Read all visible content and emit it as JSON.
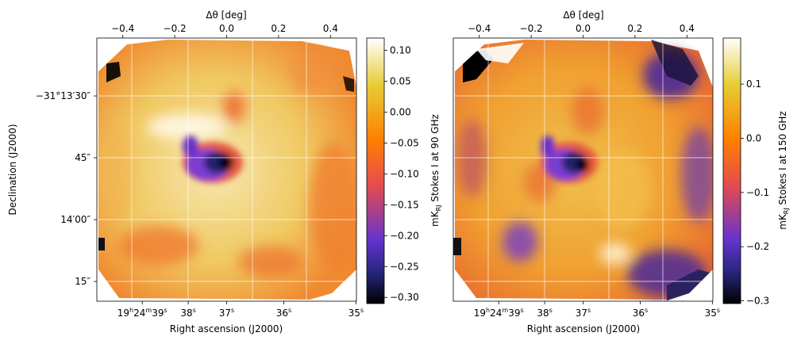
{
  "chart_data": [
    {
      "type": "heatmap",
      "title": "",
      "image_description_colormap": "CMRmap (black-blue-purple-red-orange-yellow-white)",
      "top_axis": {
        "label": "Δθ [deg]",
        "ticks": [
          -0.4,
          -0.2,
          0.0,
          0.2,
          0.4
        ],
        "tick_labels": [
          "−0.4",
          "−0.2",
          "0.0",
          "0.2",
          "0.4"
        ],
        "range": [
          -0.5,
          0.5
        ]
      },
      "bottom_axis": {
        "label": "Right ascension (J2000)",
        "ticks": [
          "19h24m39s",
          "38s",
          "37s",
          "36s",
          "35s"
        ]
      },
      "left_axis": {
        "label": "Declination (J2000)",
        "ticks": [
          "−31°13′30″",
          "45″",
          "14′00″",
          "15″"
        ]
      },
      "colorbar": {
        "label": "mK_RJ Stokes I at 90 GHz",
        "range": [
          -0.31,
          0.12
        ],
        "ticks": [
          0.1,
          0.05,
          0.0,
          -0.05,
          -0.1,
          -0.15,
          -0.2,
          -0.25,
          -0.3
        ],
        "tick_labels": [
          "0.10",
          "0.05",
          "0.00",
          "−0.05",
          "−0.10",
          "−0.15",
          "−0.20",
          "−0.25",
          "−0.30"
        ]
      },
      "grid": true
    },
    {
      "type": "heatmap",
      "title": "",
      "top_axis": {
        "label": "Δθ [deg]",
        "ticks": [
          -0.4,
          -0.2,
          0.0,
          0.2,
          0.4
        ],
        "tick_labels": [
          "−0.4",
          "−0.2",
          "0.0",
          "0.2",
          "0.4"
        ],
        "range": [
          -0.5,
          0.5
        ]
      },
      "bottom_axis": {
        "label": "Right ascension (J2000)",
        "ticks": [
          "19h24m39s",
          "38s",
          "37s",
          "36s",
          "35s"
        ]
      },
      "colorbar": {
        "label": "mK_RJ Stokes I at 150 GHz",
        "range": [
          -0.305,
          0.185
        ],
        "ticks": [
          0.1,
          0.0,
          -0.1,
          -0.2,
          -0.3
        ],
        "tick_labels": [
          "0.1",
          "0.0",
          "−0.1",
          "−0.2",
          "−0.3"
        ]
      },
      "grid": true
    }
  ],
  "colors": {
    "cmap": [
      "#000000",
      "#262680",
      "#6633cc",
      "#e64d4d",
      "#ff8000",
      "#e6cc33",
      "#ffffff"
    ],
    "grid": "#ffffff"
  }
}
